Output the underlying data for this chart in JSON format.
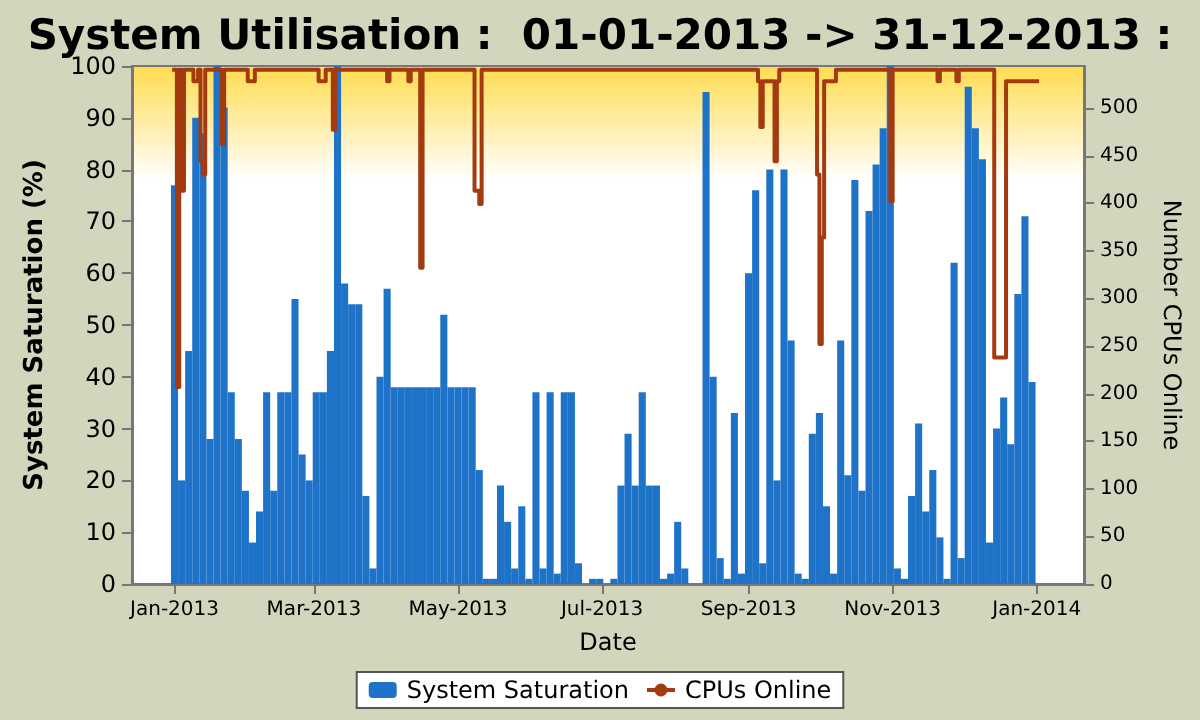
{
  "chart_data": {
    "type": "bar",
    "title": "System Utilisation :  01-01-2013 -> 31-12-2013 :",
    "xlabel": "Date",
    "ylabel": "System Saturation (%)",
    "y2label": "Number CPUs Online",
    "xlim": [
      "2012-12-14",
      "2014-01-21"
    ],
    "xticks": [
      {
        "value": "2013-01-01",
        "label": "Jan-2013"
      },
      {
        "value": "2013-03-01",
        "label": "Mar-2013"
      },
      {
        "value": "2013-05-01",
        "label": "May-2013"
      },
      {
        "value": "2013-07-01",
        "label": "Jul-2013"
      },
      {
        "value": "2013-09-01",
        "label": "Sep-2013"
      },
      {
        "value": "2013-11-01",
        "label": "Nov-2013"
      },
      {
        "value": "2014-01-01",
        "label": "Jan-2014"
      }
    ],
    "ylim": [
      0,
      100
    ],
    "yticks": [
      0,
      10,
      20,
      30,
      40,
      50,
      60,
      70,
      80,
      90,
      100
    ],
    "y2lim": [
      0,
      544
    ],
    "y2ticks": [
      0,
      50,
      100,
      150,
      200,
      250,
      300,
      350,
      400,
      450,
      500
    ],
    "grid": false,
    "legend": "bottom",
    "series": [
      {
        "name": "System Saturation",
        "color": "#1e73c8",
        "x": [
          "2013-01-01",
          "2013-01-04",
          "2013-01-07",
          "2013-01-10",
          "2013-01-13",
          "2013-01-16",
          "2013-01-19",
          "2013-01-22",
          "2013-01-25",
          "2013-01-28",
          "2013-01-31",
          "2013-02-03",
          "2013-02-06",
          "2013-02-09",
          "2013-02-12",
          "2013-02-15",
          "2013-02-18",
          "2013-02-21",
          "2013-02-24",
          "2013-02-27",
          "2013-03-02",
          "2013-03-05",
          "2013-03-08",
          "2013-03-11",
          "2013-03-14",
          "2013-03-17",
          "2013-03-20",
          "2013-03-23",
          "2013-03-26",
          "2013-03-29",
          "2013-04-01",
          "2013-04-04",
          "2013-04-07",
          "2013-04-10",
          "2013-04-13",
          "2013-04-16",
          "2013-04-19",
          "2013-04-22",
          "2013-04-25",
          "2013-04-28",
          "2013-05-01",
          "2013-05-04",
          "2013-05-07",
          "2013-05-10",
          "2013-05-13",
          "2013-05-16",
          "2013-05-19",
          "2013-05-22",
          "2013-05-25",
          "2013-05-28",
          "2013-05-31",
          "2013-06-03",
          "2013-06-06",
          "2013-06-09",
          "2013-06-12",
          "2013-06-15",
          "2013-06-18",
          "2013-06-21",
          "2013-06-24",
          "2013-06-27",
          "2013-06-30",
          "2013-07-03",
          "2013-07-06",
          "2013-07-09",
          "2013-07-12",
          "2013-07-15",
          "2013-07-18",
          "2013-07-21",
          "2013-07-24",
          "2013-07-27",
          "2013-07-30",
          "2013-08-02",
          "2013-08-05",
          "2013-08-08",
          "2013-08-11",
          "2013-08-14",
          "2013-08-17",
          "2013-08-20",
          "2013-08-23",
          "2013-08-26",
          "2013-08-29",
          "2013-09-01",
          "2013-09-04",
          "2013-09-07",
          "2013-09-10",
          "2013-09-13",
          "2013-09-16",
          "2013-09-19",
          "2013-09-22",
          "2013-09-25",
          "2013-09-28",
          "2013-10-01",
          "2013-10-04",
          "2013-10-07",
          "2013-10-10",
          "2013-10-13",
          "2013-10-16",
          "2013-10-19",
          "2013-10-22",
          "2013-10-25",
          "2013-10-28",
          "2013-10-31",
          "2013-11-03",
          "2013-11-06",
          "2013-11-09",
          "2013-11-12",
          "2013-11-15",
          "2013-11-18",
          "2013-11-21",
          "2013-11-24",
          "2013-11-27",
          "2013-11-30",
          "2013-12-03",
          "2013-12-06",
          "2013-12-09",
          "2013-12-12",
          "2013-12-15",
          "2013-12-18",
          "2013-12-21",
          "2013-12-24",
          "2013-12-27",
          "2013-12-30"
        ],
        "values": [
          77,
          20,
          45,
          90,
          87,
          28,
          100,
          92,
          37,
          28,
          18,
          8,
          14,
          37,
          18,
          37,
          37,
          55,
          25,
          20,
          37,
          37,
          45,
          100,
          58,
          54,
          54,
          17,
          3,
          40,
          57,
          38,
          38,
          38,
          38,
          38,
          38,
          38,
          52,
          38,
          38,
          38,
          38,
          22,
          1,
          1,
          19,
          12,
          3,
          15,
          1,
          37,
          3,
          37,
          2,
          37,
          37,
          4,
          0,
          1,
          1,
          0,
          1,
          19,
          29,
          19,
          37,
          19,
          19,
          1,
          2,
          12,
          3,
          0,
          0,
          95,
          40,
          5,
          1,
          33,
          2,
          60,
          76,
          4,
          80,
          20,
          80,
          47,
          2,
          1,
          29,
          33,
          15,
          2,
          47,
          21,
          78,
          18,
          72,
          81,
          88,
          100,
          3,
          1,
          17,
          31,
          14,
          22,
          9,
          1,
          62,
          5,
          96,
          88,
          82,
          8,
          30,
          36,
          27,
          56,
          71,
          39
        ]
      },
      {
        "name": "CPUs Online",
        "type": "step",
        "axis": "y2",
        "color": "#a33a10",
        "x": [
          "2012-12-31",
          "2013-01-02",
          "2013-01-03",
          "2013-01-04",
          "2013-01-05",
          "2013-01-09",
          "2013-01-11",
          "2013-01-12",
          "2013-01-13",
          "2013-01-14",
          "2013-01-21",
          "2013-01-22",
          "2013-02-01",
          "2013-02-04",
          "2013-03-03",
          "2013-03-06",
          "2013-03-09",
          "2013-03-10",
          "2013-04-01",
          "2013-04-02",
          "2013-04-10",
          "2013-04-11",
          "2013-04-15",
          "2013-04-16",
          "2013-05-08",
          "2013-05-10",
          "2013-05-11",
          "2013-09-05",
          "2013-09-06",
          "2013-09-07",
          "2013-09-12",
          "2013-09-13",
          "2013-09-14",
          "2013-09-30",
          "2013-10-01",
          "2013-10-02",
          "2013-10-03",
          "2013-10-08",
          "2013-10-31",
          "2013-11-01",
          "2013-11-20",
          "2013-11-21",
          "2013-11-28",
          "2013-11-29",
          "2013-12-14",
          "2013-12-19",
          "2014-01-02"
        ],
        "values": [
          540,
          207,
          540,
          413,
          540,
          528,
          540,
          444,
          430,
          540,
          462,
          540,
          528,
          540,
          528,
          540,
          477,
          540,
          528,
          540,
          528,
          540,
          332,
          540,
          413,
          399,
          540,
          528,
          480,
          528,
          444,
          528,
          540,
          430,
          252,
          364,
          528,
          540,
          402,
          540,
          528,
          540,
          528,
          540,
          238,
          528,
          528
        ]
      }
    ]
  }
}
